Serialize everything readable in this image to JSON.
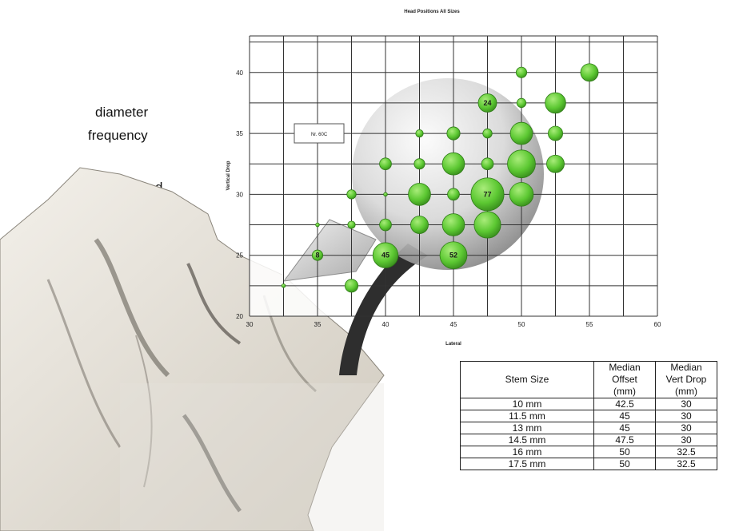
{
  "side_text": [
    "diameter",
    "frequency",
    "d"
  ],
  "chart_data": {
    "type": "scatter",
    "title": "Head Positions All Sizes",
    "xlabel": "Lateral",
    "ylabel": "Vertical Drop",
    "xlim": [
      30,
      60
    ],
    "ylim": [
      20,
      43
    ],
    "xticks": [
      30,
      35,
      40,
      45,
      50,
      55,
      60
    ],
    "yticks": [
      20,
      25,
      30,
      35,
      40
    ],
    "grid": true,
    "legend_box_text": "Nr. 60C",
    "bubble_color": "#5cc832",
    "points": [
      {
        "x": 32.5,
        "y": 22.5,
        "size": 1
      },
      {
        "x": 35,
        "y": 25,
        "size": 8,
        "label": "8"
      },
      {
        "x": 35,
        "y": 27.5,
        "size": 1
      },
      {
        "x": 37.5,
        "y": 22.5,
        "size": 12
      },
      {
        "x": 37.5,
        "y": 27.5,
        "size": 4
      },
      {
        "x": 37.5,
        "y": 30,
        "size": 6
      },
      {
        "x": 40,
        "y": 25,
        "size": 45,
        "label": "45"
      },
      {
        "x": 40,
        "y": 27.5,
        "size": 10
      },
      {
        "x": 40,
        "y": 30,
        "size": 1
      },
      {
        "x": 40,
        "y": 32.5,
        "size": 10
      },
      {
        "x": 42.5,
        "y": 27.5,
        "size": 22
      },
      {
        "x": 42.5,
        "y": 30,
        "size": 35
      },
      {
        "x": 42.5,
        "y": 32.5,
        "size": 8
      },
      {
        "x": 42.5,
        "y": 35,
        "size": 4
      },
      {
        "x": 45,
        "y": 25,
        "size": 52,
        "label": "52"
      },
      {
        "x": 45,
        "y": 27.5,
        "size": 35
      },
      {
        "x": 45,
        "y": 30,
        "size": 10
      },
      {
        "x": 45,
        "y": 32.5,
        "size": 35
      },
      {
        "x": 45,
        "y": 35,
        "size": 12
      },
      {
        "x": 47.5,
        "y": 27.5,
        "size": 50
      },
      {
        "x": 47.5,
        "y": 30,
        "size": 77,
        "label": "77"
      },
      {
        "x": 47.5,
        "y": 32.5,
        "size": 10
      },
      {
        "x": 47.5,
        "y": 35,
        "size": 6
      },
      {
        "x": 47.5,
        "y": 37.5,
        "size": 24,
        "label": "24"
      },
      {
        "x": 50,
        "y": 30,
        "size": 40
      },
      {
        "x": 50,
        "y": 32.5,
        "size": 55
      },
      {
        "x": 50,
        "y": 35,
        "size": 35
      },
      {
        "x": 50,
        "y": 37.5,
        "size": 6
      },
      {
        "x": 50,
        "y": 40,
        "size": 8
      },
      {
        "x": 52.5,
        "y": 32.5,
        "size": 22
      },
      {
        "x": 52.5,
        "y": 35,
        "size": 15
      },
      {
        "x": 52.5,
        "y": 37.5,
        "size": 30
      },
      {
        "x": 55,
        "y": 40,
        "size": 22
      }
    ]
  },
  "table": {
    "headers": [
      "Stem Size",
      "Median Offset (mm)",
      "Median Vert Drop (mm)"
    ],
    "header_lines": [
      [
        "Stem Size"
      ],
      [
        "Median",
        "Offset",
        "(mm)"
      ],
      [
        "Median",
        "Vert Drop",
        "(mm)"
      ]
    ],
    "rows": [
      [
        "10 mm",
        "42.5",
        "30"
      ],
      [
        "11.5 mm",
        "45",
        "30"
      ],
      [
        "13 mm",
        "45",
        "30"
      ],
      [
        "14.5 mm",
        "47.5",
        "30"
      ],
      [
        "16 mm",
        "50",
        "32.5"
      ],
      [
        "17.5 mm",
        "50",
        "32.5"
      ]
    ]
  }
}
